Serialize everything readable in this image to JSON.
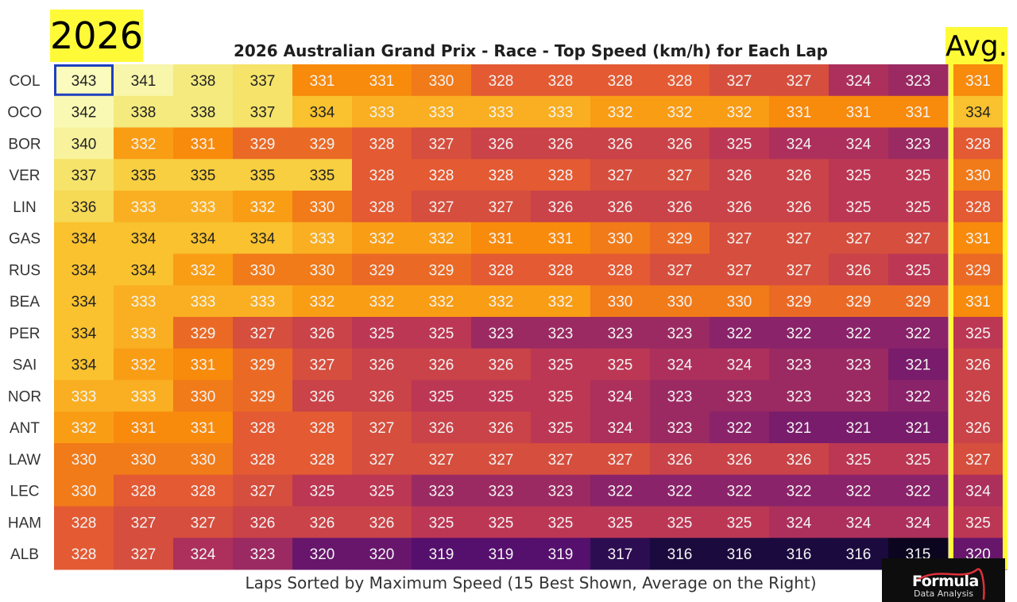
{
  "year_badge": "2026",
  "avg_header": "Avg.",
  "logo": {
    "word": "Formula",
    "sub": "Data Analysis",
    "accent_color": "#e0303a"
  },
  "colors": {
    "highlight_yellow": "#fefa38",
    "selected_cell_border": "#1f3fbf"
  },
  "chart_data": {
    "type": "heatmap",
    "title": "2026 Australian Grand Prix - Race - Top Speed (km/h) for Each Lap",
    "xlabel": "Laps Sorted by Maximum Speed (15 Best Shown, Average on the Right)",
    "colormap": "inferno",
    "value_range": [
      315,
      343
    ],
    "drivers": [
      "COL",
      "OCO",
      "BOR",
      "VER",
      "LIN",
      "GAS",
      "RUS",
      "BEA",
      "PER",
      "SAI",
      "NOR",
      "ANT",
      "LAW",
      "LEC",
      "HAM",
      "ALB"
    ],
    "laps": [
      [
        343,
        341,
        338,
        337,
        331,
        331,
        330,
        328,
        328,
        328,
        328,
        327,
        327,
        324,
        323
      ],
      [
        342,
        338,
        338,
        337,
        334,
        333,
        333,
        333,
        333,
        332,
        332,
        332,
        331,
        331,
        331
      ],
      [
        340,
        332,
        331,
        329,
        329,
        328,
        327,
        326,
        326,
        326,
        326,
        325,
        324,
        324,
        323
      ],
      [
        337,
        335,
        335,
        335,
        335,
        328,
        328,
        328,
        328,
        327,
        327,
        326,
        326,
        325,
        325
      ],
      [
        336,
        333,
        333,
        332,
        330,
        328,
        327,
        327,
        326,
        326,
        326,
        326,
        326,
        325,
        325
      ],
      [
        334,
        334,
        334,
        334,
        333,
        332,
        332,
        331,
        331,
        330,
        329,
        327,
        327,
        327,
        327
      ],
      [
        334,
        334,
        332,
        330,
        330,
        329,
        329,
        328,
        328,
        328,
        327,
        327,
        327,
        326,
        325
      ],
      [
        334,
        333,
        333,
        333,
        332,
        332,
        332,
        332,
        332,
        330,
        330,
        330,
        329,
        329,
        329
      ],
      [
        334,
        333,
        329,
        327,
        326,
        325,
        325,
        323,
        323,
        323,
        323,
        322,
        322,
        322,
        322
      ],
      [
        334,
        332,
        331,
        329,
        327,
        326,
        326,
        326,
        325,
        325,
        324,
        324,
        323,
        323,
        321
      ],
      [
        333,
        333,
        330,
        329,
        326,
        326,
        325,
        325,
        325,
        324,
        323,
        323,
        323,
        323,
        322
      ],
      [
        332,
        331,
        331,
        328,
        328,
        327,
        326,
        326,
        325,
        324,
        323,
        322,
        321,
        321,
        321
      ],
      [
        330,
        330,
        330,
        328,
        328,
        327,
        327,
        327,
        327,
        327,
        326,
        326,
        326,
        325,
        325
      ],
      [
        330,
        328,
        328,
        327,
        325,
        325,
        323,
        323,
        323,
        322,
        322,
        322,
        322,
        322,
        322
      ],
      [
        328,
        327,
        327,
        326,
        326,
        326,
        325,
        325,
        325,
        325,
        325,
        325,
        324,
        324,
        324
      ],
      [
        328,
        327,
        324,
        323,
        320,
        320,
        319,
        319,
        319,
        317,
        316,
        316,
        316,
        316,
        315
      ]
    ],
    "average": [
      331,
      334,
      328,
      330,
      328,
      331,
      329,
      331,
      325,
      326,
      326,
      326,
      327,
      324,
      325,
      320
    ],
    "highlighted_cell": {
      "driver": "COL",
      "lap_rank": 1
    }
  }
}
